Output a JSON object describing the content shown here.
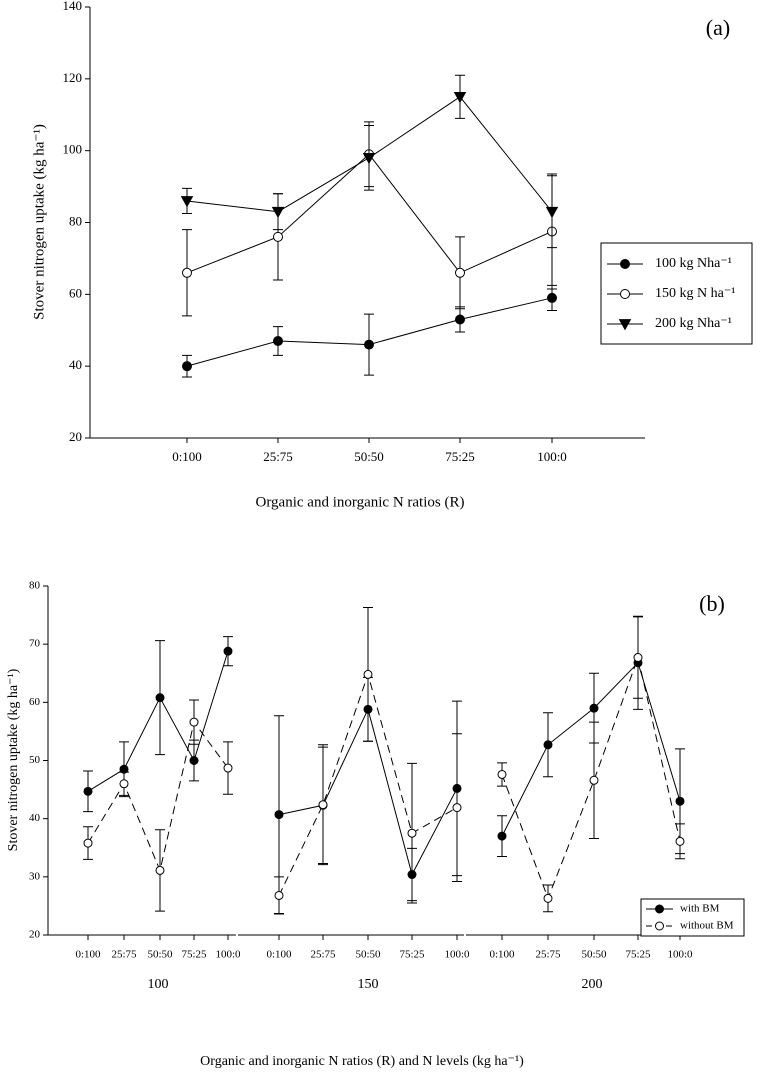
{
  "chart_data": [
    {
      "type": "line",
      "annotation": "(a)",
      "y_label": "Stover nitrogen uptake (kg ha⁻¹)",
      "x_label": "Organic and inorganic N ratios (R)",
      "categories": [
        "0:100",
        "25:75",
        "50:50",
        "75:25",
        "100:0"
      ],
      "ylim": [
        20,
        140
      ],
      "yticks": [
        20,
        40,
        60,
        80,
        100,
        120,
        140
      ],
      "series": [
        {
          "name": "100 kg Nha⁻¹",
          "color": "#000000",
          "marker": "filled-circle",
          "line_style": "solid",
          "values": [
            40,
            47,
            46,
            53,
            59
          ],
          "errors": [
            3,
            4,
            8.5,
            3.5,
            3.5
          ]
        },
        {
          "name": "150  kg N ha⁻¹",
          "color": "#000000",
          "marker": "open-circle",
          "line_style": "solid",
          "values": [
            66,
            76,
            99,
            66,
            77.5
          ],
          "errors": [
            12,
            12,
            9,
            10,
            16
          ]
        },
        {
          "name": "200 kg Nha⁻¹",
          "color": "#000000",
          "marker": "filled-triangle-down",
          "line_style": "solid",
          "values": [
            86,
            83,
            98,
            115,
            83
          ],
          "errors": [
            3.5,
            5,
            9,
            6,
            10
          ]
        }
      ]
    },
    {
      "type": "line",
      "annotation": "(b)",
      "y_label": "Stover nitrogen uptake (kg ha⁻¹)",
      "x_label": "Organic and inorganic N ratios (R) and N levels (kg ha⁻¹)",
      "categories": [
        "0:100",
        "25:75",
        "50:50",
        "75:25",
        "100:0",
        "0:100",
        "25:75",
        "50:50",
        "75:25",
        "100:0",
        "0:100",
        "25:75",
        "50:50",
        "75:25",
        "100:0"
      ],
      "group_labels": [
        "100",
        "150",
        "200"
      ],
      "ylim": [
        20,
        80
      ],
      "yticks": [
        20,
        30,
        40,
        50,
        60,
        70,
        80
      ],
      "series": [
        {
          "name": "with BM",
          "color": "#000000",
          "marker": "filled-circle",
          "line_style": "solid",
          "values": [
            44.7,
            48.5,
            60.8,
            50,
            68.8,
            40.7,
            42.3,
            58.8,
            30.4,
            45.2,
            37,
            52.7,
            59,
            66.8,
            43
          ],
          "errors": [
            3.5,
            4.7,
            9.8,
            3.5,
            2.5,
            17,
            10,
            5.5,
            4.5,
            15,
            3.5,
            5.5,
            6,
            8,
            9
          ]
        },
        {
          "name": "without BM",
          "color": "#000000",
          "marker": "open-circle",
          "line_style": "dashed",
          "values": [
            35.8,
            46,
            31.1,
            56.6,
            48.7,
            26.8,
            42.4,
            64.8,
            37.5,
            41.9,
            47.6,
            26.3,
            46.6,
            67.7,
            36.1
          ],
          "errors": [
            2.8,
            2,
            7,
            3.8,
            4.5,
            3.2,
            10.3,
            11.5,
            12,
            12.7,
            2,
            2.3,
            10,
            7,
            3
          ]
        }
      ]
    }
  ]
}
